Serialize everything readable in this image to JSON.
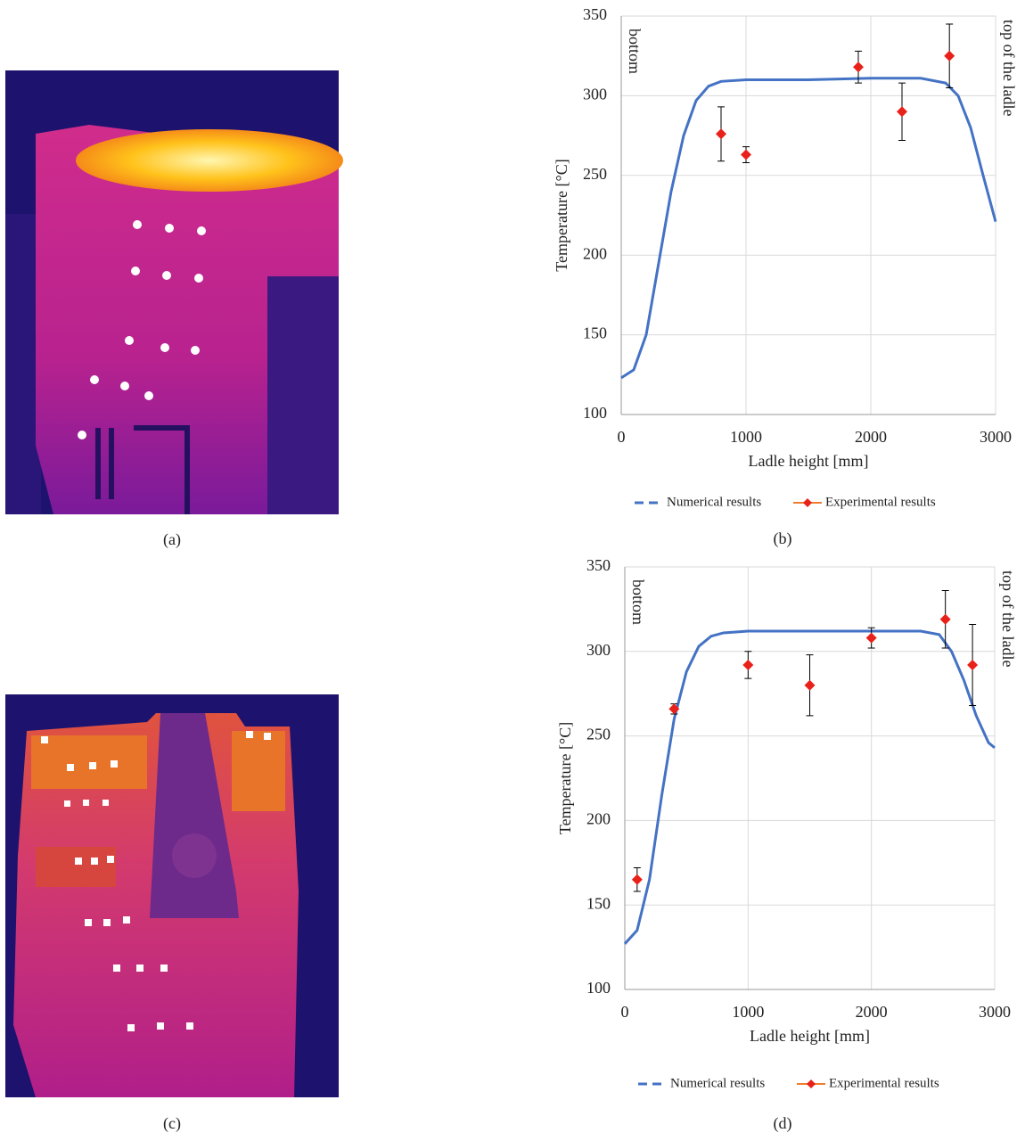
{
  "captions": [
    "(a)",
    "(b)",
    "(c)",
    "(d)"
  ],
  "chart_data": [
    {
      "type": "line",
      "x_label": "Ladle height [mm]",
      "y_label": "Temperature [°C]",
      "annotations": [
        "bottom",
        "top of the ladle"
      ],
      "xlim": [
        0,
        3000
      ],
      "ylim": [
        100,
        350
      ],
      "xticks": [
        0,
        1000,
        2000,
        3000
      ],
      "yticks": [
        100,
        150,
        200,
        250,
        300,
        350
      ],
      "grid": true,
      "legend": "bottom",
      "series": [
        {
          "name": "Numerical results",
          "mode": "line",
          "color": "#4472c4",
          "x": [
            0,
            100,
            200,
            300,
            400,
            500,
            600,
            700,
            800,
            1000,
            1500,
            2000,
            2400,
            2600,
            2700,
            2800,
            2900,
            3000
          ],
          "values": [
            123,
            128,
            150,
            195,
            240,
            275,
            297,
            306,
            309,
            310,
            310,
            311,
            311,
            308,
            300,
            280,
            250,
            221
          ]
        },
        {
          "name": "Experimental results",
          "mode": "markers",
          "color": "#e8221a",
          "line_color": "#ed7d31",
          "x": [
            800,
            1000,
            1900,
            2250,
            2630
          ],
          "values": [
            276,
            263,
            318,
            290,
            325
          ],
          "errors": [
            17,
            5,
            10,
            18,
            20
          ]
        }
      ]
    },
    {
      "type": "line",
      "x_label": "Ladle height [mm]",
      "y_label": "Temperature [°C]",
      "annotations": [
        "bottom",
        "top of the ladle"
      ],
      "xlim": [
        0,
        3000
      ],
      "ylim": [
        100,
        350
      ],
      "xticks": [
        0,
        1000,
        2000,
        3000
      ],
      "yticks": [
        100,
        150,
        200,
        250,
        300,
        350
      ],
      "grid": true,
      "legend": "bottom",
      "series": [
        {
          "name": "Numerical results",
          "mode": "line",
          "color": "#4472c4",
          "x": [
            0,
            100,
            200,
            300,
            400,
            500,
            600,
            700,
            800,
            1000,
            2000,
            2400,
            2550,
            2650,
            2750,
            2850,
            2950,
            3000
          ],
          "values": [
            127,
            135,
            165,
            215,
            260,
            288,
            303,
            309,
            311,
            312,
            312,
            312,
            310,
            300,
            283,
            262,
            246,
            243
          ]
        },
        {
          "name": "Experimental results",
          "mode": "markers",
          "color": "#e8221a",
          "line_color": "#ed7d31",
          "x": [
            100,
            400,
            1000,
            1500,
            2000,
            2600,
            2820
          ],
          "values": [
            165,
            266,
            292,
            280,
            308,
            319,
            292
          ],
          "errors": [
            7,
            3,
            8,
            18,
            6,
            17,
            24
          ]
        }
      ]
    }
  ]
}
